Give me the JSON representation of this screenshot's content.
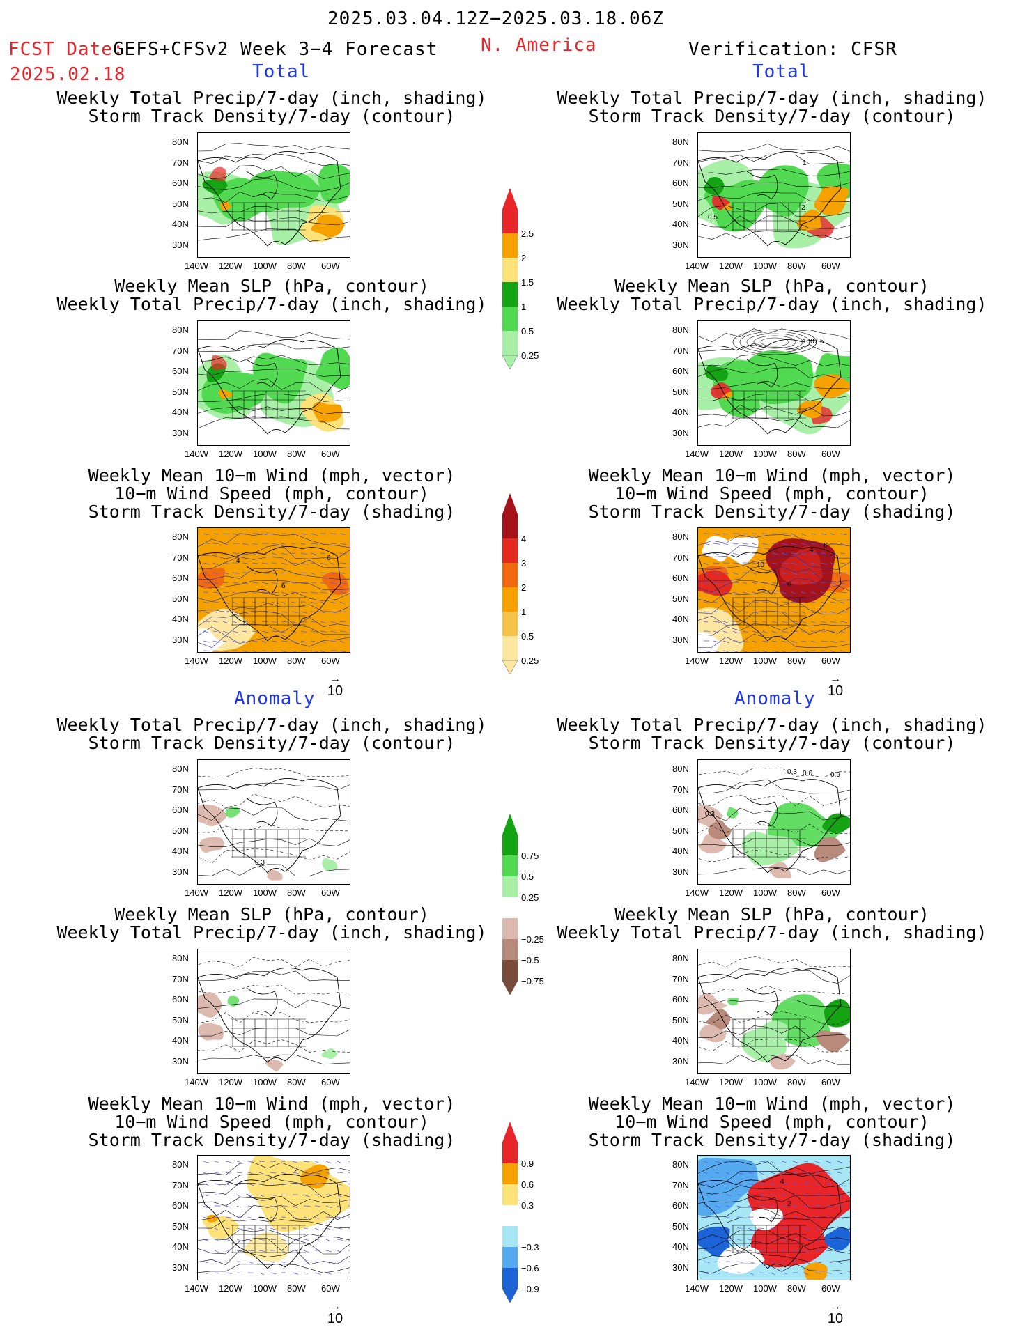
{
  "header": {
    "period": "2025.03.04.12Z−2025.03.18.06Z",
    "fcst_label": "FCST Date:",
    "fcst_model": "GEFS+CFSv2 Week 3−4 Forecast",
    "fcst_date": "2025.02.18",
    "region": "N. America",
    "verification": "Verification: CFSR",
    "total_left": "Total",
    "total_right": "Total",
    "anomaly_left": "Anomaly",
    "anomaly_right": "Anomaly"
  },
  "titles": {
    "precip_track": [
      "Weekly Total Precip/7-day (inch, shading)",
      "Storm Track Density/7-day (contour)"
    ],
    "slp_precip": [
      "Weekly Mean SLP (hPa, contour)",
      "Weekly Total Precip/7-day (inch, shading)"
    ],
    "wind_track": [
      "Weekly Mean 10−m Wind (mph, vector)",
      "10−m Wind Speed (mph, contour)",
      "Storm Track Density/7-day (shading)"
    ]
  },
  "axes": {
    "lat_labels": [
      "80N",
      "70N",
      "60N",
      "50N",
      "40N",
      "30N"
    ],
    "lon_labels": [
      "140W",
      "120W",
      "100W",
      "80W",
      "60W"
    ]
  },
  "vector_ref": "10",
  "colorbars": {
    "precip_total": {
      "labels": [
        "2.5",
        "2",
        "1.5",
        "1",
        "0.5",
        "0.25"
      ],
      "colors": [
        "#e8262a",
        "#f5a200",
        "#fde27a",
        "#13a313",
        "#52d952",
        "#a8f0a8"
      ]
    },
    "track_total": {
      "labels": [
        "4",
        "3",
        "2",
        "1",
        "0.5",
        "0.25"
      ],
      "colors": [
        "#a6121a",
        "#e42a1c",
        "#f26a10",
        "#f5a200",
        "#f7c24c",
        "#fde7a0"
      ]
    },
    "precip_anom": {
      "labels": [
        "0.75",
        "0.5",
        "0.25",
        "−0.25",
        "−0.5",
        "−0.75"
      ],
      "colors": [
        "#13a313",
        "#52d952",
        "#a8f0a8",
        "#ffffff",
        "#dcbab0",
        "#b88a7c",
        "#7a4a3a"
      ]
    },
    "track_anom": {
      "labels": [
        "0.9",
        "0.6",
        "0.3",
        "−0.3",
        "−0.6",
        "−0.9"
      ],
      "colors": [
        "#e8262a",
        "#f5a200",
        "#fde27a",
        "#ffffff",
        "#a6e6f5",
        "#56aaf0",
        "#1a64d8"
      ]
    }
  },
  "contour_labels": {
    "map2_a": "0.5",
    "map2_b": "1",
    "map2_c": "2",
    "map4_a": "1007.5",
    "map5_a": "4",
    "map5_b": "6",
    "map5_c": "6",
    "map6_a": "10",
    "map6_b": "4",
    "map6_c": "6",
    "map6_d": "6",
    "map7_a": "0.3",
    "map8_a": "0.3",
    "map8_b": "0.6",
    "map8_c": "0.9",
    "map8_d": "0.3",
    "map11_a": "2",
    "map12_a": "4",
    "map12_b": "2"
  }
}
